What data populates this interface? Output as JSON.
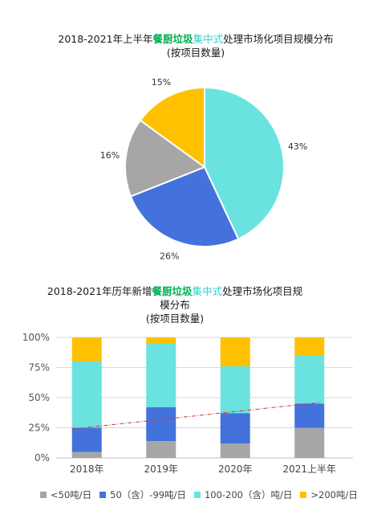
{
  "chart_data": [
    {
      "type": "pie",
      "title_parts": [
        {
          "text": "2018-2021年上半年",
          "style": "normal"
        },
        {
          "text": "餐厨垃圾",
          "style": "green"
        },
        {
          "text": "集中式",
          "style": "cyan"
        },
        {
          "text": "处理市场化项目规模分布",
          "style": "normal"
        }
      ],
      "subtitle": "(按项目数量)",
      "slices": [
        {
          "label": "43%",
          "value": 43,
          "color": "#6ae3e0"
        },
        {
          "label": "26%",
          "value": 26,
          "color": "#4472dd"
        },
        {
          "label": "16%",
          "value": 16,
          "color": "#a6a6a6"
        },
        {
          "label": "15%",
          "value": 15,
          "color": "#ffc000"
        }
      ]
    },
    {
      "type": "bar",
      "stacked": true,
      "title_parts": [
        {
          "text": "2018-2021年历年新增",
          "style": "normal"
        },
        {
          "text": "餐厨垃圾",
          "style": "green"
        },
        {
          "text": "集中式",
          "style": "cyan"
        },
        {
          "text": "处理市场化项目规模分布",
          "style": "normal"
        }
      ],
      "subtitle": "(按项目数量)",
      "categories": [
        "2018年",
        "2019年",
        "2020年",
        "2021上半年"
      ],
      "yticks": [
        "0%",
        "25%",
        "50%",
        "75%",
        "100%"
      ],
      "ylim": [
        0,
        100
      ],
      "series": [
        {
          "name": "<50吨/日",
          "color": "#a6a6a6",
          "values": [
            5,
            14,
            12,
            25
          ]
        },
        {
          "name": "50（含）-99吨/日",
          "color": "#4472dd",
          "values": [
            20,
            28,
            25,
            20
          ]
        },
        {
          "name": "100-200（含）吨/日",
          "color": "#6ae3e0",
          "values": [
            55,
            53,
            39,
            40
          ]
        },
        {
          "name": ">200吨/日",
          "color": "#ffc000",
          "values": [
            20,
            5,
            24,
            15
          ]
        }
      ],
      "trendline": {
        "color": "#e0302f",
        "from": 24,
        "to": 46
      },
      "grid": true,
      "legend_position": "bottom"
    }
  ]
}
